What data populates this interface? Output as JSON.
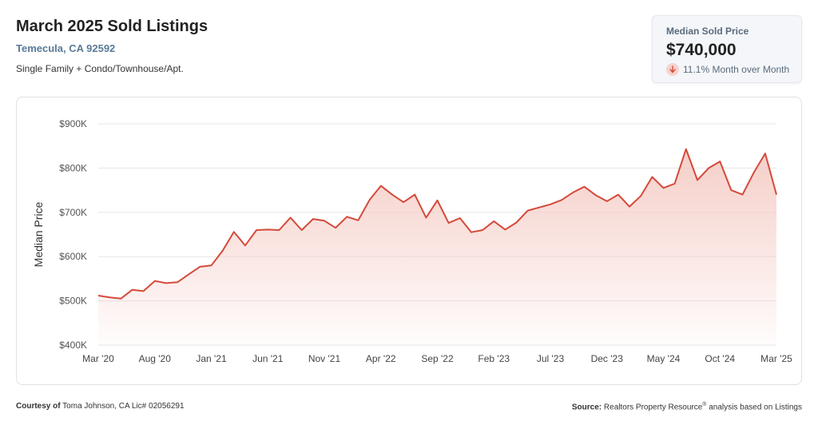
{
  "header": {
    "title": "March 2025 Sold Listings",
    "location": "Temecula, CA 92592",
    "property_types": "Single Family + Condo/Townhouse/Apt."
  },
  "stat_card": {
    "label": "Median Sold Price",
    "value": "$740,000",
    "change": "11.1% Month over Month",
    "change_direction": "down",
    "change_icon": "arrow-down-icon"
  },
  "footer": {
    "courtesy_label": "Courtesy of",
    "courtesy_text": "Toma Johnson, CA Lic# 02056291",
    "source_label": "Source:",
    "source_text": "Realtors Property Resource",
    "source_mark": "®",
    "source_suffix": "analysis based on Listings"
  },
  "colors": {
    "line": "#d5493a",
    "fill_top": "#f4c9c2",
    "grid": "#e6e6e6",
    "accent_text": "#5a7a98"
  },
  "chart_data": {
    "type": "area",
    "ylabel": "Median Price",
    "xlabel": "",
    "ylim": [
      400000,
      900000
    ],
    "y_ticks": [
      {
        "value": 400000,
        "label": "$400K"
      },
      {
        "value": 500000,
        "label": "$500K"
      },
      {
        "value": 600000,
        "label": "$600K"
      },
      {
        "value": 700000,
        "label": "$700K"
      },
      {
        "value": 800000,
        "label": "$800K"
      },
      {
        "value": 900000,
        "label": "$900K"
      }
    ],
    "x_ticks": [
      {
        "index": 0,
        "label": "Mar '20"
      },
      {
        "index": 5,
        "label": "Aug '20"
      },
      {
        "index": 10,
        "label": "Jan '21"
      },
      {
        "index": 15,
        "label": "Jun '21"
      },
      {
        "index": 20,
        "label": "Nov '21"
      },
      {
        "index": 25,
        "label": "Apr '22"
      },
      {
        "index": 30,
        "label": "Sep '22"
      },
      {
        "index": 35,
        "label": "Feb '23"
      },
      {
        "index": 40,
        "label": "Jul '23"
      },
      {
        "index": 45,
        "label": "Dec '23"
      },
      {
        "index": 50,
        "label": "May '24"
      },
      {
        "index": 55,
        "label": "Oct '24"
      },
      {
        "index": 60,
        "label": "Mar '25"
      }
    ],
    "grid": true,
    "series": [
      {
        "values": [
          512000,
          508000,
          505000,
          525000,
          522000,
          545000,
          540000,
          542000,
          560000,
          577000,
          580000,
          613000,
          656000,
          625000,
          660000,
          661000,
          660000,
          688000,
          660000,
          685000,
          681000,
          665000,
          690000,
          682000,
          728000,
          760000,
          740000,
          723000,
          740000,
          688000,
          727000,
          676000,
          687000,
          655000,
          660000,
          680000,
          661000,
          677000,
          704000,
          711000,
          718000,
          728000,
          745000,
          758000,
          739000,
          725000,
          740000,
          713000,
          737000,
          780000,
          755000,
          765000,
          843000,
          773000,
          800000,
          815000,
          750000,
          740000,
          790000,
          833000,
          740000
        ]
      }
    ]
  }
}
